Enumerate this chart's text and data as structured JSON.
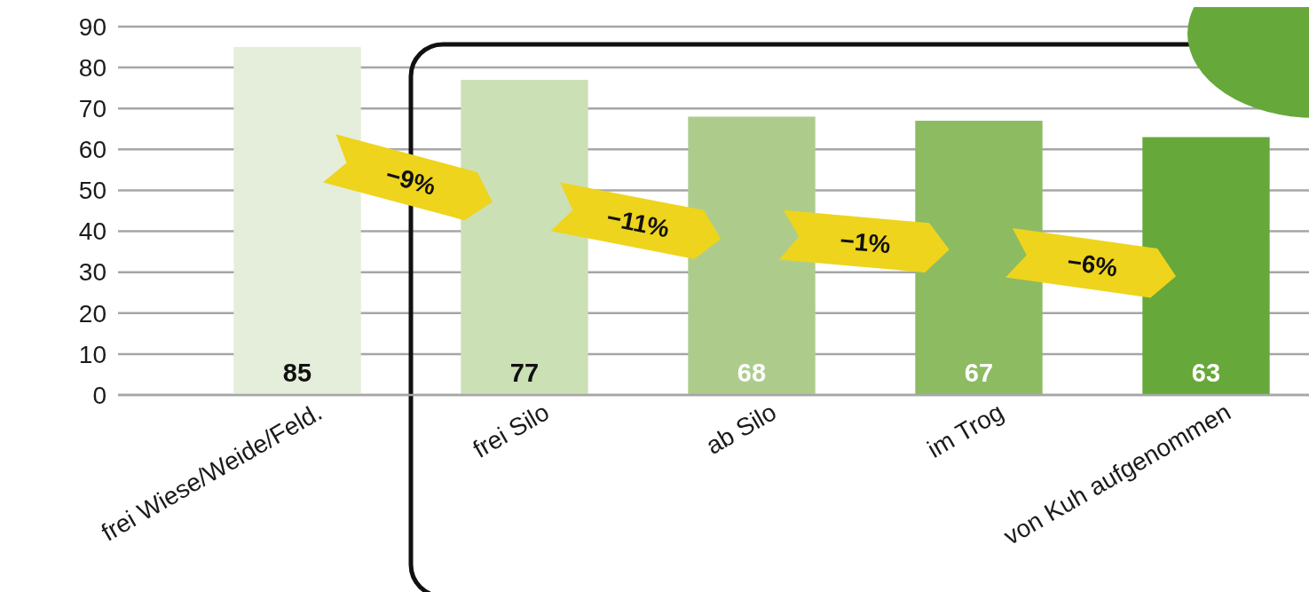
{
  "chart_data": {
    "type": "bar",
    "categories": [
      "frei Wiese/Weide/Feld.",
      "frei Silo",
      "ab Silo",
      "im Trog",
      "von Kuh aufgenommen"
    ],
    "values": [
      85,
      77,
      68,
      67,
      63
    ],
    "colors": [
      "#e4eedb",
      "#cce0b5",
      "#adcc8c",
      "#8dbb62",
      "#67a83a"
    ],
    "ylim": [
      0,
      90
    ],
    "yticks": [
      0,
      10,
      20,
      30,
      40,
      50,
      60,
      70,
      80,
      90
    ],
    "grid": "y",
    "data_labels": true,
    "annotations": [
      "−9%",
      "−11%",
      "−1%",
      "−6%"
    ]
  }
}
